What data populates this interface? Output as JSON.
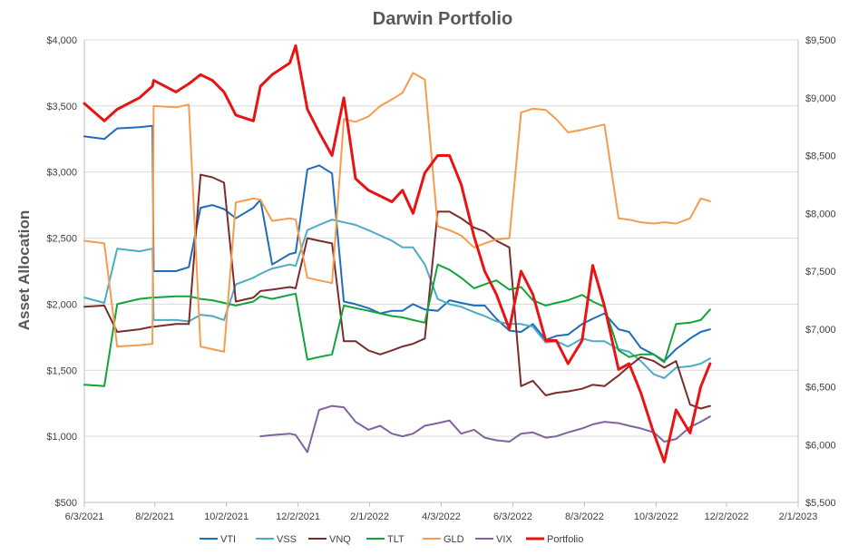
{
  "chart_data": {
    "type": "line",
    "title": "Darwin Portfolio",
    "ylabel": "Asset Allocation",
    "xlabel": "",
    "xlim": [
      "6/3/2021",
      "2/1/2023"
    ],
    "ylim": [
      500,
      4000
    ],
    "y2lim": [
      5500,
      9500
    ],
    "x_ticks": [
      "6/3/2021",
      "8/2/2021",
      "10/2/2021",
      "12/2/2021",
      "2/1/2022",
      "4/3/2022",
      "6/3/2022",
      "8/3/2022",
      "10/3/2022",
      "12/2/2022",
      "2/1/2023"
    ],
    "y_ticks": [
      "$500",
      "$1,000",
      "$1,500",
      "$2,000",
      "$2,500",
      "$3,000",
      "$3,500",
      "$4,000"
    ],
    "y2_ticks": [
      "$5,500",
      "$6,000",
      "$6,500",
      "$7,000",
      "$7,500",
      "$8,000",
      "$8,500",
      "$9,000",
      "$9,500"
    ],
    "grid": "horizontal",
    "legend_position": "bottom",
    "x_dates": [
      "6/3/2021",
      "6/20/2021",
      "7/1/2021",
      "7/20/2021",
      "7/31/2021",
      "8/1/2021",
      "8/20/2021",
      "8/31/2021",
      "9/10/2021",
      "9/20/2021",
      "9/30/2021",
      "10/10/2021",
      "10/25/2021",
      "10/31/2021",
      "11/10/2021",
      "11/25/2021",
      "11/30/2021",
      "12/10/2021",
      "12/20/2021",
      "12/31/2021",
      "1/10/2022",
      "1/20/2022",
      "1/31/2022",
      "2/10/2022",
      "2/20/2022",
      "3/1/2022",
      "3/10/2022",
      "3/20/2022",
      "3/31/2022",
      "4/10/2022",
      "4/20/2022",
      "5/1/2022",
      "5/10/2022",
      "5/20/2022",
      "5/31/2022",
      "6/10/2022",
      "6/20/2022",
      "7/1/2022",
      "7/10/2022",
      "7/20/2022",
      "8/1/2022",
      "8/10/2022",
      "8/20/2022",
      "9/1/2022",
      "9/10/2022",
      "9/20/2022",
      "10/1/2022",
      "10/10/2022",
      "10/20/2022",
      "11/1/2022",
      "11/10/2022",
      "11/18/2022"
    ],
    "series": [
      {
        "name": "VTI",
        "color": "#1F6DB8",
        "axis": "left",
        "width": 2,
        "values": [
          3270,
          3250,
          3330,
          3340,
          3350,
          2250,
          2250,
          2280,
          2730,
          2750,
          2720,
          2650,
          2730,
          2790,
          2300,
          2380,
          2390,
          3020,
          3050,
          2990,
          2020,
          2000,
          1970,
          1930,
          1950,
          1950,
          2000,
          1960,
          1950,
          2030,
          2010,
          1990,
          1990,
          1890,
          1800,
          1790,
          1850,
          1730,
          1760,
          1770,
          1850,
          1890,
          1930,
          1810,
          1790,
          1670,
          1620,
          1570,
          1660,
          1740,
          1790,
          1810
        ]
      },
      {
        "name": "VSS",
        "color": "#4BACC6",
        "axis": "left",
        "width": 2,
        "values": [
          2050,
          2010,
          2420,
          2400,
          2420,
          1880,
          1880,
          1870,
          1920,
          1910,
          1880,
          2150,
          2200,
          2230,
          2270,
          2300,
          2290,
          2560,
          2600,
          2640,
          2620,
          2600,
          2560,
          2520,
          2480,
          2430,
          2430,
          2300,
          2040,
          2000,
          1980,
          1940,
          1910,
          1870,
          1850,
          1850,
          1830,
          1710,
          1720,
          1680,
          1740,
          1720,
          1720,
          1660,
          1640,
          1570,
          1470,
          1440,
          1520,
          1530,
          1550,
          1590
        ]
      },
      {
        "name": "VNQ",
        "color": "#7B2C2C",
        "axis": "left",
        "width": 2,
        "values": [
          1980,
          1990,
          1790,
          1810,
          1830,
          1830,
          1850,
          1850,
          2980,
          2960,
          2920,
          2020,
          2050,
          2100,
          2110,
          2130,
          2120,
          2500,
          2480,
          2460,
          1720,
          1720,
          1650,
          1620,
          1650,
          1680,
          1700,
          1740,
          2700,
          2700,
          2650,
          2580,
          2550,
          2480,
          2430,
          1380,
          1420,
          1310,
          1330,
          1340,
          1360,
          1390,
          1380,
          1460,
          1530,
          1600,
          1570,
          1520,
          1570,
          1240,
          1210,
          1230
        ]
      },
      {
        "name": "TLT",
        "color": "#12A339",
        "axis": "left",
        "width": 2,
        "values": [
          1390,
          1380,
          2000,
          2040,
          2050,
          2050,
          2060,
          2060,
          2040,
          2030,
          2010,
          1990,
          2020,
          2060,
          2040,
          2070,
          2080,
          1580,
          1600,
          1620,
          1990,
          1970,
          1950,
          1930,
          1910,
          1900,
          1880,
          1860,
          2300,
          2260,
          2200,
          2120,
          2150,
          2180,
          2110,
          2130,
          2030,
          1990,
          2010,
          2030,
          2070,
          2020,
          1980,
          1650,
          1600,
          1620,
          1620,
          1560,
          1850,
          1860,
          1880,
          1960
        ]
      },
      {
        "name": "GLD",
        "color": "#F59C4F",
        "axis": "left",
        "width": 2,
        "values": [
          2480,
          2460,
          1680,
          1690,
          1700,
          3500,
          3490,
          3510,
          1680,
          1660,
          1640,
          2770,
          2800,
          2790,
          2630,
          2650,
          2640,
          2200,
          2180,
          2160,
          3400,
          3380,
          3420,
          3500,
          3550,
          3600,
          3750,
          3700,
          2590,
          2560,
          2520,
          2430,
          2460,
          2490,
          2500,
          3450,
          3480,
          3470,
          3400,
          3300,
          3320,
          3340,
          3360,
          2650,
          2640,
          2620,
          2610,
          2620,
          2610,
          2650,
          2800,
          2780
        ]
      },
      {
        "name": "VIX",
        "color": "#8064A2",
        "axis": "left",
        "width": 2,
        "values": [
          null,
          null,
          null,
          null,
          null,
          null,
          null,
          null,
          null,
          null,
          null,
          null,
          null,
          1000,
          1010,
          1020,
          1010,
          880,
          1200,
          1230,
          1220,
          1110,
          1050,
          1080,
          1020,
          1000,
          1020,
          1080,
          1100,
          1120,
          1020,
          1050,
          990,
          970,
          960,
          1020,
          1030,
          990,
          1000,
          1030,
          1060,
          1090,
          1110,
          1100,
          1080,
          1060,
          1030,
          960,
          980,
          1070,
          1110,
          1150
        ]
      },
      {
        "name": "Portfolio",
        "color": "#E81414",
        "axis": "right",
        "width": 3,
        "values": [
          8950,
          8800,
          8900,
          9000,
          9100,
          9150,
          9050,
          9120,
          9200,
          9150,
          9050,
          8850,
          8800,
          9100,
          9200,
          9300,
          9450,
          8900,
          8700,
          8500,
          9000,
          8300,
          8200,
          8150,
          8100,
          8200,
          8000,
          8350,
          8500,
          8500,
          8250,
          7800,
          7500,
          7300,
          7000,
          7500,
          7300,
          6900,
          6900,
          6700,
          6900,
          7550,
          7200,
          6650,
          6700,
          6450,
          6100,
          5850,
          6300,
          6100,
          6500,
          6700
        ]
      }
    ]
  }
}
